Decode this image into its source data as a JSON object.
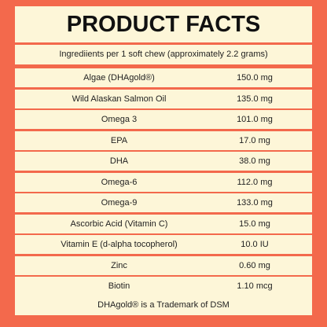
{
  "header": {
    "title": "PRODUCT FACTS",
    "subtitle": "Ingrediients per 1 soft chew (approximately 2.2 grams)"
  },
  "table": {
    "rows": [
      [
        "Algae (DHAgold®)",
        "150.0 mg"
      ],
      [
        "Wild Alaskan Salmon Oil",
        "135.0 mg"
      ],
      [
        "Omega 3",
        "101.0 mg"
      ],
      [
        "EPA",
        "17.0 mg"
      ],
      [
        "DHA",
        "38.0 mg"
      ],
      [
        "Omega-6",
        "112.0 mg"
      ],
      [
        "Omega-9",
        "133.0 mg"
      ],
      [
        "Ascorbic Acid (Vitamin C)",
        "15.0 mg"
      ],
      [
        "Vitamin E (d-alpha tocopherol)",
        "10.0 IU"
      ],
      [
        "Zinc",
        "0.60 mg"
      ],
      [
        "Biotin",
        "1.10 mcg"
      ]
    ]
  },
  "footer": "DHAgold® is a Trademark of DSM"
}
